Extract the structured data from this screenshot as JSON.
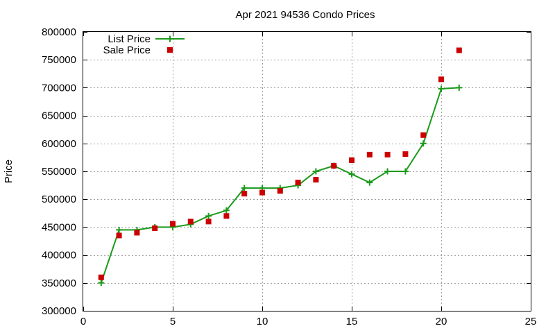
{
  "chart_data": {
    "type": "line",
    "title": "Apr 2021 94536 Condo Prices",
    "xlabel": "",
    "ylabel": "Price",
    "xlim": [
      0,
      25
    ],
    "ylim": [
      300000,
      800000
    ],
    "xticks": [
      0,
      5,
      10,
      15,
      20,
      25
    ],
    "yticks": [
      300000,
      350000,
      400000,
      450000,
      500000,
      550000,
      600000,
      650000,
      700000,
      750000,
      800000
    ],
    "grid": true,
    "legend_position": "top-left",
    "series": [
      {
        "name": "List Price",
        "style": "line-plus",
        "color": "#1a9a1a",
        "x": [
          1,
          2,
          3,
          4,
          5,
          6,
          7,
          8,
          9,
          10,
          11,
          12,
          13,
          14,
          15,
          16,
          17,
          18,
          19,
          20,
          21
        ],
        "values": [
          350000,
          445000,
          445000,
          450000,
          450000,
          455000,
          470000,
          480000,
          520000,
          520000,
          520000,
          525000,
          550000,
          560000,
          545000,
          530000,
          550000,
          550000,
          600000,
          698000,
          700000
        ]
      },
      {
        "name": "Sale Price",
        "style": "square",
        "color": "#cc0000",
        "x": [
          1,
          2,
          3,
          4,
          5,
          6,
          7,
          8,
          9,
          10,
          11,
          12,
          13,
          14,
          15,
          16,
          17,
          18,
          19,
          20,
          21
        ],
        "values": [
          360000,
          435000,
          440000,
          448000,
          456000,
          460000,
          460000,
          470000,
          510000,
          512000,
          515000,
          530000,
          535000,
          560000,
          570000,
          580000,
          580000,
          581000,
          615000,
          715000,
          767000
        ]
      }
    ]
  }
}
